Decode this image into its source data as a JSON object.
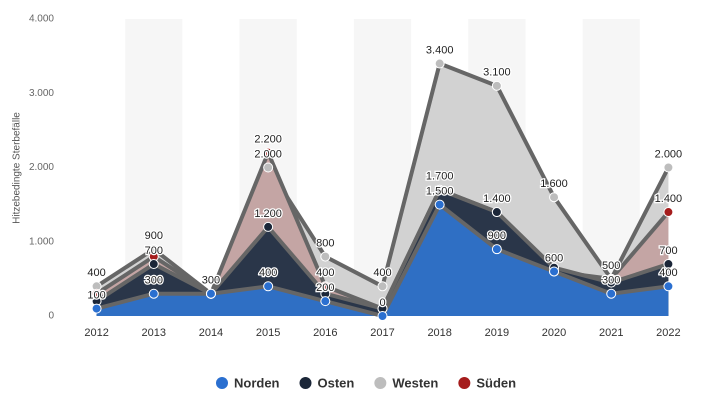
{
  "chart_data": {
    "type": "area",
    "y_axis_label": "Hitzebedingte Sterbefälle",
    "categories": [
      "2012",
      "2013",
      "2014",
      "2015",
      "2016",
      "2017",
      "2018",
      "2019",
      "2020",
      "2021",
      "2022"
    ],
    "ylim": [
      0,
      4000
    ],
    "yticks": [
      0,
      {
        "value": 1000,
        "label": "1.000"
      },
      {
        "value": 2000,
        "label": "2.000"
      },
      {
        "value": 3000,
        "label": "3.000"
      },
      {
        "value": 4000,
        "label": "4.000"
      }
    ],
    "grid": false,
    "legend": "bottom",
    "series": [
      {
        "name": "Norden",
        "color": "#2a6fd0",
        "fill": "#2f6fc4",
        "values": [
          100,
          300,
          300,
          400,
          200,
          0,
          1500,
          900,
          600,
          300,
          400
        ],
        "value_labels": [
          "100",
          "300",
          "300",
          "400",
          "200",
          "0",
          "1.500",
          "900",
          "600",
          "300",
          "400"
        ]
      },
      {
        "name": "Osten",
        "color": "#1b2638",
        "fill": "#2a3649",
        "values": [
          200,
          700,
          300,
          1200,
          300,
          100,
          1700,
          1400,
          650,
          450,
          700
        ],
        "value_labels": [
          null,
          "700",
          null,
          "1.200",
          null,
          null,
          "1.700",
          "1.400",
          null,
          null,
          "700"
        ]
      },
      {
        "name": "Westen",
        "color": "#bdbdbd",
        "fill": "#d2d2d2",
        "values": [
          400,
          900,
          300,
          2000,
          800,
          400,
          3400,
          3100,
          1600,
          500,
          2000
        ],
        "value_labels": [
          "400",
          "900",
          null,
          "2.000",
          "800",
          "400",
          "3.400",
          "3.100",
          "1.600",
          "500",
          "2.000"
        ]
      },
      {
        "name": "Süden",
        "color": "#a51c1c",
        "fill": "#c4a5a4",
        "values": [
          300,
          800,
          300,
          2200,
          400,
          100,
          1700,
          1400,
          600,
          500,
          1400
        ],
        "value_labels": [
          null,
          null,
          null,
          "2.200",
          "400",
          null,
          null,
          null,
          null,
          null,
          "1.400"
        ]
      }
    ]
  }
}
